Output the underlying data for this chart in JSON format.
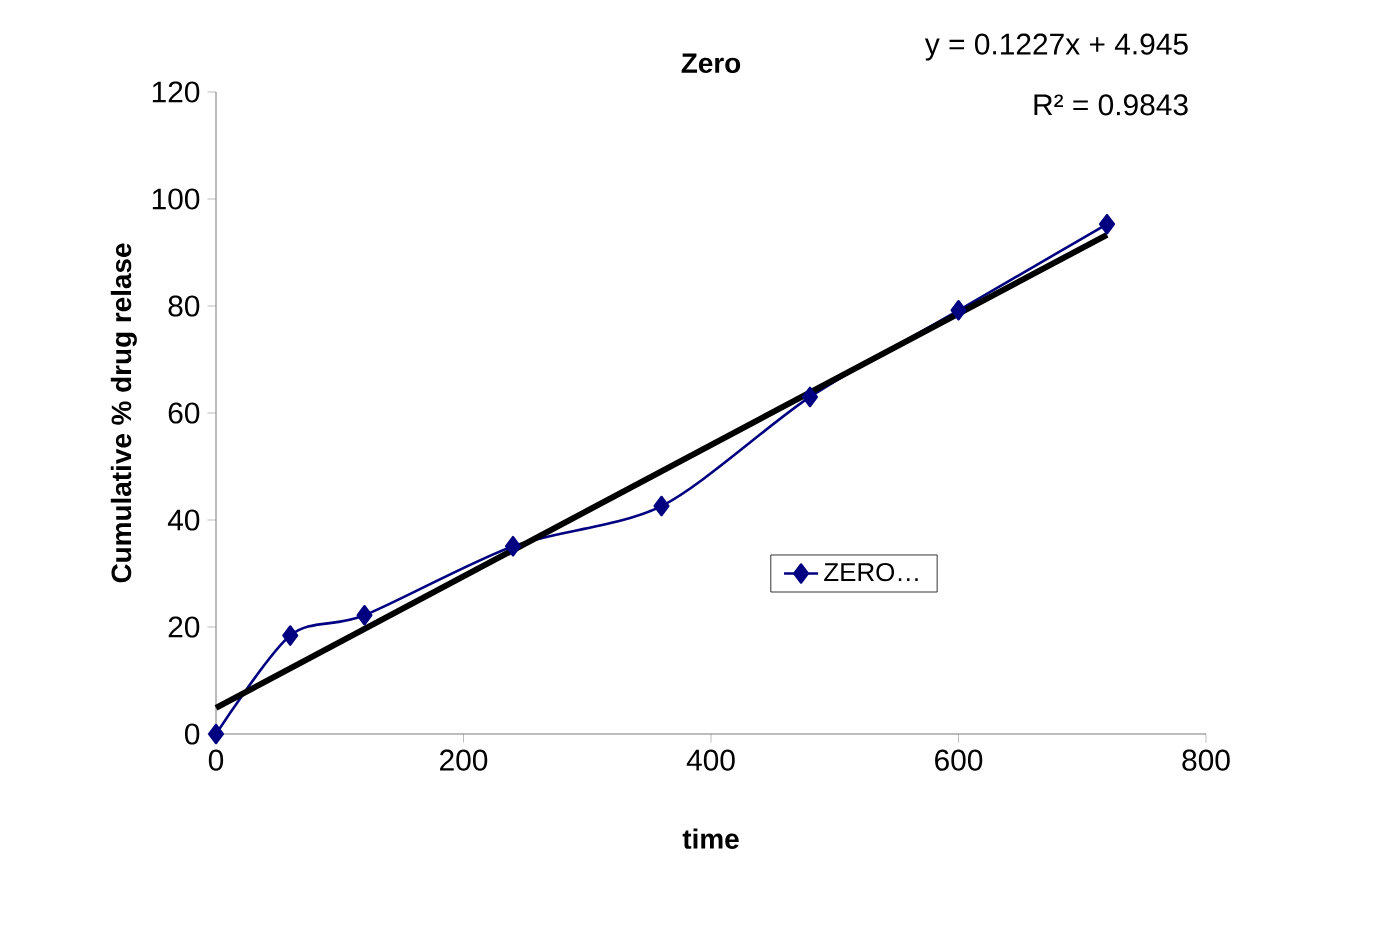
{
  "chart_data": {
    "type": "line",
    "title": "Zero",
    "xlabel": "time",
    "ylabel": "Cumulative  % drug relase",
    "annotations": [
      "y = 0.1227x + 4.945",
      "R² = 0.9843"
    ],
    "series": [
      {
        "name": "ZERO…",
        "color": "#000080",
        "marker": "diamond",
        "x": [
          0,
          60,
          120,
          240,
          360,
          480,
          600,
          720
        ],
        "values": [
          0,
          18.4,
          22.2,
          35.1,
          42.6,
          63,
          79.2,
          95.3
        ]
      },
      {
        "type": "line",
        "color": "#000000",
        "marker": "none",
        "x": [
          0,
          720
        ],
        "values": [
          4.9,
          93.3
        ]
      }
    ],
    "xlim": [
      0,
      800
    ],
    "xticks": [
      0,
      200,
      400,
      600,
      800
    ],
    "ylim": [
      0,
      120
    ],
    "yticks": [
      0,
      20,
      40,
      60,
      80,
      100,
      120
    ],
    "grid": false,
    "legend": "right"
  }
}
